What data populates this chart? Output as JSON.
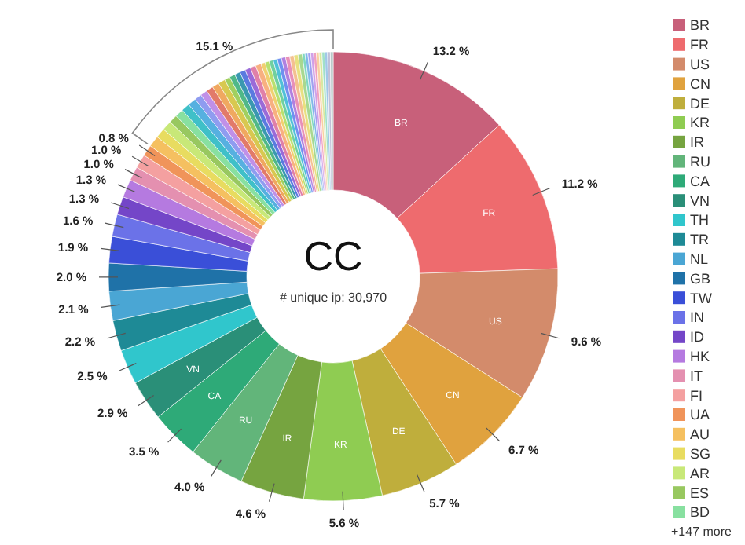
{
  "chart_data": {
    "type": "donut",
    "title": "CC",
    "subtitle": "# unique ip: 30,970",
    "categories": [
      "BR",
      "FR",
      "US",
      "CN",
      "DE",
      "KR",
      "IR",
      "RU",
      "CA",
      "VN",
      "TH",
      "TR",
      "NL",
      "GB",
      "TW",
      "IN",
      "ID",
      "HK",
      "IT",
      "FI",
      "UA",
      "AU",
      "SG",
      "AR",
      "ES",
      "BD",
      null,
      null,
      null,
      null,
      null,
      null,
      null,
      null,
      null,
      null,
      null,
      null,
      null,
      null,
      null,
      null,
      null,
      null,
      null,
      null,
      null,
      null,
      null,
      null,
      null,
      null,
      null,
      null,
      null,
      null,
      null,
      null,
      null,
      null,
      null
    ],
    "values": [
      13.2,
      11.2,
      9.6,
      6.7,
      5.7,
      5.6,
      4.6,
      4.0,
      3.5,
      2.9,
      2.5,
      2.2,
      2.1,
      2.0,
      1.9,
      1.6,
      1.3,
      1.3,
      1.0,
      1.0,
      0.8,
      0.8,
      0.7,
      0.7,
      0.6,
      0.6,
      0.6,
      0.6,
      0.5,
      0.5,
      0.5,
      0.5,
      0.5,
      0.4,
      0.4,
      0.4,
      0.4,
      0.4,
      0.4,
      0.4,
      0.3,
      0.3,
      0.3,
      0.3,
      0.3,
      0.3,
      0.3,
      0.3,
      0.3,
      0.3,
      0.2,
      0.2,
      0.2,
      0.2,
      0.2,
      0.2,
      0.2,
      0.2,
      0.2,
      0.2,
      0.2
    ],
    "value_labels": [
      "13.2 %",
      "11.2 %",
      "9.6 %",
      "6.7 %",
      "5.7 %",
      "5.6 %",
      "4.6 %",
      "4.0 %",
      "3.5 %",
      "2.9 %",
      "2.5 %",
      "2.2 %",
      "2.1 %",
      "2.0 %",
      "1.9 %",
      "1.6 %",
      "1.3 %",
      "1.3 %",
      "1.0 %",
      "1.0 %",
      "0.8 %",
      null,
      null,
      null,
      null,
      null,
      null,
      null,
      null,
      null,
      null,
      null,
      null,
      null,
      null,
      null,
      null,
      null,
      null,
      null,
      null,
      null,
      null,
      null,
      null,
      null,
      null,
      null,
      null,
      null,
      null,
      null,
      null,
      null,
      null,
      null,
      null,
      null,
      null,
      null,
      null
    ],
    "colors": [
      "#c8607a",
      "#ee6b6e",
      "#d38b6b",
      "#e0a23e",
      "#bfae3c",
      "#8fcc52",
      "#76a440",
      "#62b57a",
      "#2eaa78",
      "#2a8f78",
      "#30c6cc",
      "#1e8a96",
      "#4aa6d4",
      "#1f72a8",
      "#3a4fd8",
      "#6b72e8",
      "#7446c8",
      "#b57ae0",
      "#e490b0",
      "#f4a0a0",
      "#f0945a",
      "#f5c060",
      "#e8dc60",
      "#c8e878",
      "#98c860",
      "#88e0a0",
      "#3fc0c8",
      "#56b0e0",
      "#8f9cf0",
      "#c090e8",
      "#e27a6a",
      "#f0a860",
      "#d8c850",
      "#a0d060",
      "#50b888",
      "#3a98b0",
      "#5a7ae0",
      "#9a6ad8",
      "#e080a8",
      "#f8b080",
      "#f0d070",
      "#b8e070",
      "#70d0a0",
      "#50c0d8",
      "#7090f0",
      "#b080e0",
      "#e890b8",
      "#f4c090",
      "#e8e080",
      "#a8d890",
      "#80d8c0",
      "#80b8e8",
      "#a0a0f0",
      "#d0a0e8",
      "#f0a0c0",
      "#f8d0a0",
      "#d8e8a0",
      "#a0e0c8",
      "#a0c8e8",
      "#c0c0d8",
      "#b8c8c8"
    ],
    "legend": "right",
    "annotations": [
      "15.1 %",
      "+147 more"
    ]
  }
}
